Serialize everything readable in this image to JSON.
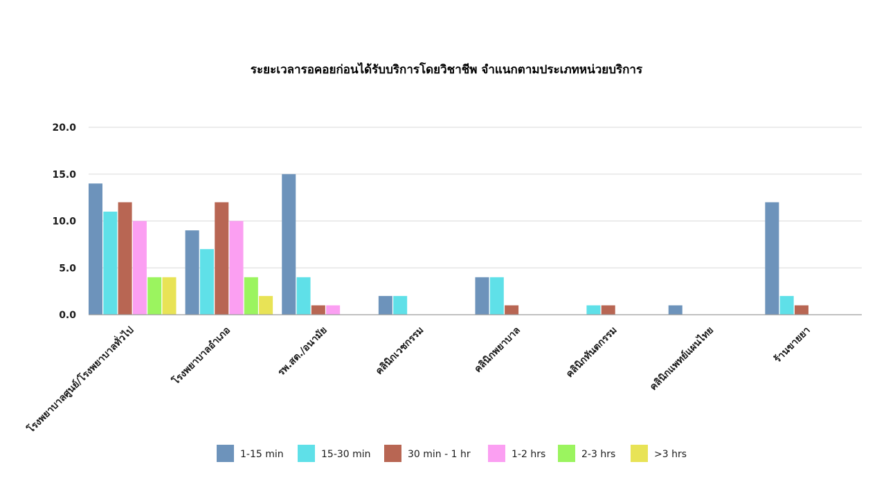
{
  "chart_data": {
    "type": "bar",
    "title": "ระยะเวลารอคอยก่อนได้รับบริการโดยวิชาชีพ จำแนกตามประเภทหน่วยบริการ",
    "categories": [
      "โรงพยาบาลศูนย์/โรงพยาบาลทั่วไป",
      "โรงพยาบาลอำเภอ",
      "รพ.สต./อนามัย",
      "คลินิกเวชกรรม",
      "คลินิกพยาบาล",
      "คลินิกทันตกรรม",
      "คลินิกแพทย์แผนไทย",
      "ร้านขายยา"
    ],
    "series": [
      {
        "name": "1-15 min",
        "color": "#6d93bb",
        "values": [
          14,
          9,
          15,
          2,
          4,
          0,
          1,
          12
        ]
      },
      {
        "name": "15-30 min",
        "color": "#5fe0e8",
        "values": [
          11,
          7,
          4,
          2,
          4,
          1,
          0,
          2
        ]
      },
      {
        "name": "30 min - 1 hr",
        "color": "#b86653",
        "values": [
          12,
          12,
          1,
          0,
          1,
          1,
          0,
          1
        ]
      },
      {
        "name": "1-2 hrs",
        "color": "#fb9ff2",
        "values": [
          10,
          10,
          1,
          0,
          0,
          0,
          0,
          0
        ]
      },
      {
        "name": "2-3 hrs",
        "color": "#9bf45f",
        "values": [
          4,
          4,
          0,
          0,
          0,
          0,
          0,
          0
        ]
      },
      {
        "name": ">3 hrs",
        "color": "#e8e356",
        "values": [
          4,
          2,
          0,
          0,
          0,
          0,
          0,
          0
        ]
      }
    ],
    "ylim": [
      0,
      20
    ],
    "yticks": [
      "0.0",
      "5.0",
      "10.0",
      "15.0",
      "20.0"
    ],
    "grid": true,
    "legend_position": "bottom"
  }
}
